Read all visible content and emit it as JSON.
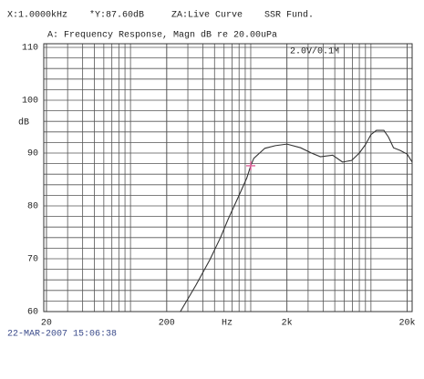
{
  "chart_data": {
    "type": "line",
    "header": [
      "X:1.0000kHz",
      "*Y:87.60dB",
      "ZA:Live Curve",
      "SSR Fund."
    ],
    "title": "A: Frequency Response, Magn dB re 20.00uPa",
    "annotation": "2.0V/0.1M",
    "timestamp": "22-MAR-2007 15:06:38",
    "x_label": "Hz",
    "y_label": "dB",
    "log_x": true,
    "xlim": [
      19,
      22000
    ],
    "ylim": [
      60,
      110
    ],
    "xticks": [
      20,
      200,
      {
        "value": 2000,
        "label": "2k"
      },
      {
        "value": 20000,
        "label": "20k"
      }
    ],
    "yticks": [
      60,
      70,
      80,
      90,
      100,
      110
    ],
    "xgrid": [
      20,
      30,
      40,
      50,
      60,
      70,
      80,
      90,
      100,
      200,
      300,
      400,
      500,
      600,
      700,
      800,
      900,
      1000,
      2000,
      3000,
      4000,
      5000,
      6000,
      7000,
      8000,
      9000,
      10000,
      20000
    ],
    "ygrid": [
      62,
      64,
      66,
      68,
      72,
      74,
      76,
      78,
      82,
      84,
      86,
      88,
      92,
      94,
      96,
      98,
      102,
      104,
      106,
      108
    ],
    "cursor": {
      "x": 1000,
      "y": 87.6,
      "color": "#e0609a"
    },
    "x": [
      260,
      350,
      457,
      560,
      652,
      800,
      928,
      1000,
      1060,
      1310,
      1600,
      2000,
      2600,
      3200,
      3800,
      4800,
      5800,
      6900,
      8000,
      9000,
      10000,
      11100,
      12800,
      14000,
      15400,
      17500,
      20000,
      22000
    ],
    "series": [
      {
        "name": "Live Curve",
        "color": "#333333",
        "values": [
          60,
          65,
          69.8,
          74,
          77.6,
          82,
          85.3,
          87.6,
          89,
          90.9,
          91.4,
          91.7,
          91,
          90,
          89.3,
          89.6,
          88.3,
          88.6,
          90,
          91.6,
          93.5,
          94.3,
          94.3,
          93,
          91,
          90.5,
          89.8,
          88.3
        ]
      }
    ]
  }
}
